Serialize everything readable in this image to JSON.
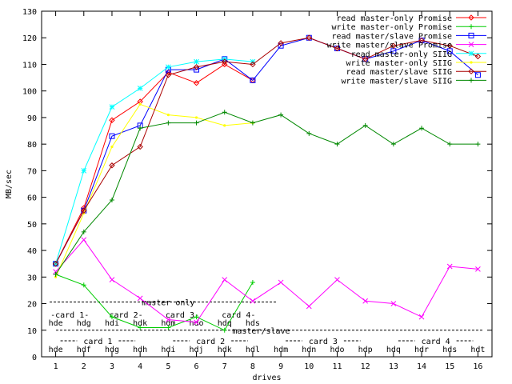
{
  "chart_data": {
    "type": "line",
    "xlabel": "drives",
    "ylabel": "MB/sec",
    "xlim": [
      0.5,
      16.5
    ],
    "ylim": [
      0,
      130
    ],
    "x_ticks": [
      1,
      2,
      3,
      4,
      5,
      6,
      7,
      8,
      9,
      10,
      11,
      12,
      13,
      14,
      15,
      16
    ],
    "y_ticks": [
      0,
      10,
      20,
      30,
      40,
      50,
      60,
      70,
      80,
      90,
      100,
      110,
      120,
      130
    ],
    "legend_position": "top-right",
    "series": [
      {
        "name": "read master-only Promise",
        "color": "#ff0000",
        "marker": "diamond",
        "x": [
          1,
          2,
          3,
          4,
          5,
          6,
          7,
          8
        ],
        "values": [
          35,
          56,
          89,
          96,
          107,
          103,
          110,
          104
        ]
      },
      {
        "name": "write master-only Promise",
        "color": "#00cc00",
        "marker": "plus",
        "x": [
          1,
          2,
          3,
          4,
          5,
          6,
          7,
          8
        ],
        "values": [
          31,
          27,
          15,
          11,
          11,
          15,
          10,
          28
        ]
      },
      {
        "name": "read master/slave Promise",
        "color": "#0000ff",
        "marker": "square",
        "x": [
          1,
          2,
          3,
          4,
          5,
          6,
          7,
          8,
          9,
          10,
          11,
          12,
          13,
          14,
          15,
          16
        ],
        "values": [
          35,
          55,
          83,
          87,
          108,
          108,
          112,
          104,
          117,
          120,
          116,
          112,
          115,
          119,
          115,
          106
        ]
      },
      {
        "name": "write master/slave Promise",
        "color": "#ff00ff",
        "marker": "cross",
        "x": [
          1,
          2,
          3,
          4,
          5,
          6,
          7,
          8,
          9,
          10,
          11,
          12,
          13,
          14,
          15,
          16
        ],
        "values": [
          32,
          44,
          29,
          22,
          14,
          13,
          29,
          21,
          28,
          19,
          29,
          21,
          20,
          15,
          34,
          33
        ]
      },
      {
        "name": "read master-only SIIG",
        "color": "#00ffff",
        "marker": "star",
        "x": [
          1,
          2,
          3,
          4,
          5,
          6,
          7,
          8
        ],
        "values": [
          35,
          70,
          94,
          101,
          109,
          111,
          112,
          111
        ]
      },
      {
        "name": "write master-only SIIG",
        "color": "#ffff00",
        "marker": "dot",
        "x": [
          1,
          2,
          3,
          4,
          5,
          6,
          7,
          8
        ],
        "values": [
          30,
          54,
          79,
          95,
          91,
          90,
          87,
          88
        ]
      },
      {
        "name": "read master/slave SIIG",
        "color": "#aa0000",
        "marker": "diamond",
        "x": [
          1,
          2,
          3,
          4,
          5,
          6,
          7,
          8,
          9,
          10,
          11,
          12,
          13,
          14,
          15,
          16
        ],
        "values": [
          35,
          55,
          72,
          79,
          106,
          109,
          111,
          110,
          118,
          120,
          116,
          112,
          117,
          119,
          117,
          113
        ]
      },
      {
        "name": "write master/slave SIIG",
        "color": "#008800",
        "marker": "plus",
        "x": [
          1,
          2,
          3,
          4,
          5,
          6,
          7,
          8,
          9,
          10,
          11,
          12,
          13,
          14,
          15,
          16
        ],
        "values": [
          31,
          47,
          59,
          86,
          88,
          88,
          92,
          88,
          91,
          84,
          80,
          87,
          80,
          86,
          80,
          80
        ]
      }
    ],
    "annotations": {
      "master_only": {
        "title": "master only",
        "line_y": 20,
        "groups": [
          {
            "label": "-card 1-",
            "drives": [
              "hde",
              "hdg"
            ],
            "x": [
              1,
              2
            ]
          },
          {
            "label": "card 2-",
            "drives": [
              "hdi",
              "hdk"
            ],
            "x": [
              3,
              4
            ]
          },
          {
            "label": "card 3-",
            "drives": [
              "hdm",
              "hdo"
            ],
            "x": [
              5,
              6
            ]
          },
          {
            "label": "card 4-",
            "drives": [
              "hdq",
              "hds"
            ],
            "x": [
              7,
              8
            ]
          }
        ]
      },
      "master_slave": {
        "title": "master/slave",
        "line_y": 10,
        "groups": [
          {
            "label": "card 1",
            "drives": [
              "hde",
              "hdf",
              "hdg",
              "hdh"
            ],
            "x": [
              1,
              2,
              3,
              4
            ]
          },
          {
            "label": "card 2",
            "drives": [
              "hdi",
              "hdj",
              "hdk",
              "hdl"
            ],
            "x": [
              5,
              6,
              7,
              8
            ]
          },
          {
            "label": "card 3",
            "drives": [
              "hdm",
              "hdn",
              "hdo",
              "hdp"
            ],
            "x": [
              9,
              10,
              11,
              12
            ]
          },
          {
            "label": "card 4",
            "drives": [
              "hdq",
              "hdr",
              "hds",
              "hdt"
            ],
            "x": [
              13,
              14,
              15,
              16
            ]
          }
        ]
      }
    }
  }
}
